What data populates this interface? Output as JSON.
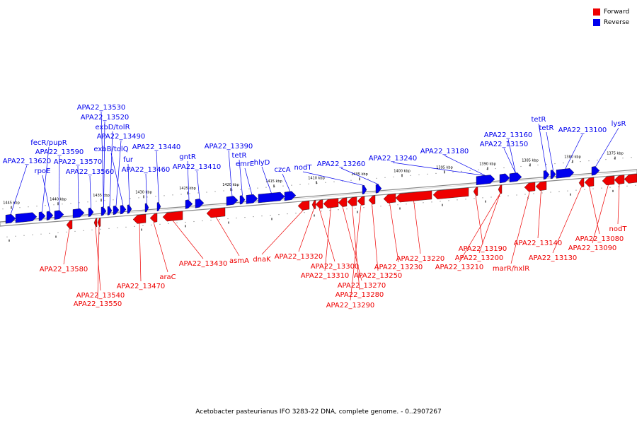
{
  "legend": {
    "forward_label": "Forward",
    "reverse_label": "Reverse",
    "forward_color": "#ee0000",
    "reverse_color": "#0000ee"
  },
  "caption": "Acetobacter pasteurianus IFO 3283-22 DNA, complete genome. - 0..2907267",
  "kbp_ticks": [
    "1445 kbp",
    "1440 kbp",
    "1435 kbp",
    "1430 kbp",
    "1425 kbp",
    "1420 kbp",
    "1415 kbp",
    "1410 kbp",
    "1405 kbp",
    "1400 kbp",
    "1395 kbp",
    "1390 kbp",
    "1385 kbp",
    "1380 kbp",
    "1375 kbp"
  ],
  "reverse_labels": [
    "APA22_13620",
    "rpoE",
    "fecR/pupR",
    "APA22_13590",
    "APA22_13570",
    "APA22_13560",
    "APA22_13530",
    "APA22_13520",
    "exbD/tolR",
    "APA22_13490",
    "exbB/tolQ",
    "fur",
    "APA22_13460",
    "APA22_13440",
    "gntR",
    "APA22_13410",
    "APA22_13390",
    "tetR",
    "emrE",
    "hlyD",
    "czcA",
    "nodT",
    "APA22_13260",
    "APA22_13240",
    "APA22_13180",
    "APA22_13160",
    "APA22_13150",
    "tetR",
    "tetR",
    "APA22_13100",
    "lysR"
  ],
  "forward_labels": [
    "APA22_13580",
    "APA22_13540",
    "APA22_13550",
    "APA22_13470",
    "araC",
    "APA22_13430",
    "asmA",
    "dnaK",
    "APA22_13320",
    "APA22_13300",
    "APA22_13310",
    "APA22_13270",
    "APA22_13280",
    "APA22_13290",
    "APA22_13250",
    "APA22_13230",
    "APA22_13220",
    "APA22_13190",
    "APA22_13200",
    "APA22_13210",
    "marR/hxlR",
    "APA22_13140",
    "APA22_13130",
    "APA22_13080",
    "APA22_13090",
    "nodT"
  ]
}
